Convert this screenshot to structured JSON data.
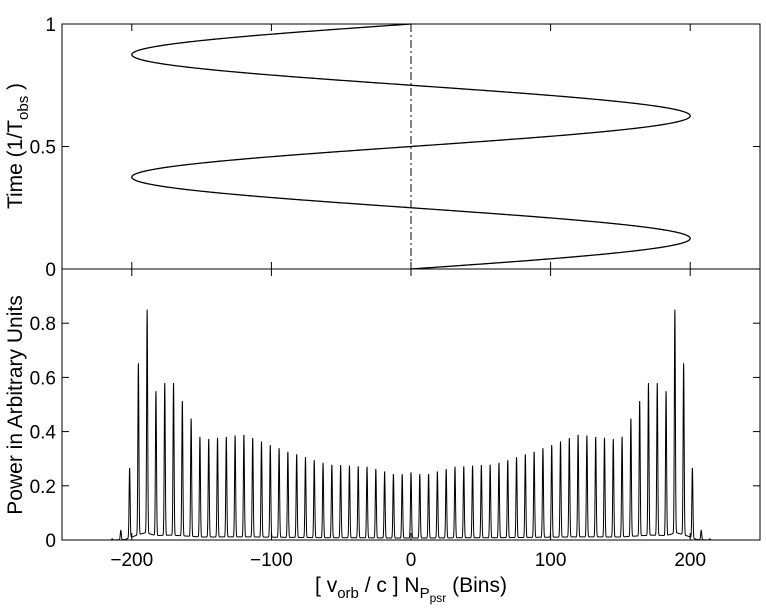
{
  "chart_data": [
    {
      "type": "line",
      "title": "",
      "xlabel": "",
      "ylabel": "Time (1/T",
      "ylabel_sub": "obs",
      "ylabel_end": ")",
      "xlim": [
        -250,
        250
      ],
      "ylim": [
        0,
        1
      ],
      "yticks": [
        0,
        0.5,
        1
      ],
      "yticklabels": [
        "0",
        "0.5",
        "1"
      ],
      "amplitude": 200,
      "cycles": 2,
      "phase": "sine",
      "grid": false,
      "reference_line": {
        "x": 0,
        "style": "dash-dot"
      }
    },
    {
      "type": "line",
      "title": "",
      "xlabel_parts": [
        "[ v",
        "orb",
        " / c ] N",
        "P",
        "psr",
        "  (Bins)"
      ],
      "ylabel": "Power in Arbitrary Units",
      "xlim": [
        -250,
        250
      ],
      "ylim": [
        0,
        1
      ],
      "xticks": [
        -200,
        -100,
        0,
        100,
        200
      ],
      "xticklabels": [
        "−200",
        "−100",
        "0",
        "100",
        "200"
      ],
      "yticks": [
        0,
        0.2,
        0.4,
        0.6,
        0.8
      ],
      "yticklabels": [
        "0",
        "0.2",
        "0.4",
        "0.6",
        "0.8"
      ],
      "grid": false,
      "spike_spacing": 6.3,
      "envelope": [
        {
          "x": -215,
          "y": 0.0
        },
        {
          "x": -205,
          "y": 0.05
        },
        {
          "x": -196,
          "y": 0.62
        },
        {
          "x": -190,
          "y": 0.9
        },
        {
          "x": -183,
          "y": 0.55
        },
        {
          "x": -172,
          "y": 0.6
        },
        {
          "x": -150,
          "y": 0.37
        },
        {
          "x": -120,
          "y": 0.39
        },
        {
          "x": -90,
          "y": 0.33
        },
        {
          "x": -60,
          "y": 0.28
        },
        {
          "x": -30,
          "y": 0.27
        },
        {
          "x": -10,
          "y": 0.24
        },
        {
          "x": 0,
          "y": 0.25
        },
        {
          "x": 10,
          "y": 0.24
        },
        {
          "x": 30,
          "y": 0.27
        },
        {
          "x": 60,
          "y": 0.28
        },
        {
          "x": 90,
          "y": 0.33
        },
        {
          "x": 120,
          "y": 0.39
        },
        {
          "x": 150,
          "y": 0.37
        },
        {
          "x": 172,
          "y": 0.6
        },
        {
          "x": 183,
          "y": 0.55
        },
        {
          "x": 190,
          "y": 0.9
        },
        {
          "x": 196,
          "y": 0.62
        },
        {
          "x": 205,
          "y": 0.05
        },
        {
          "x": 215,
          "y": 0.0
        }
      ]
    }
  ]
}
